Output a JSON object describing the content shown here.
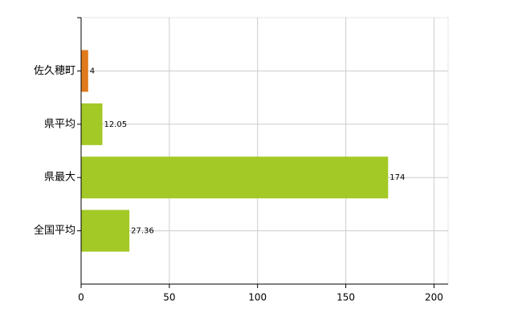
{
  "chart_data": {
    "type": "bar",
    "orientation": "horizontal",
    "categories": [
      "佐久穂町",
      "県平均",
      "県最大",
      "全国平均"
    ],
    "values": [
      4,
      12.05,
      174,
      27.36
    ],
    "colors": [
      "#e07a1c",
      "#a3c926",
      "#a3c926",
      "#a3c926"
    ],
    "xlim": [
      0,
      208
    ],
    "xticks": [
      0,
      50,
      100,
      150,
      200
    ],
    "grid": true
  }
}
